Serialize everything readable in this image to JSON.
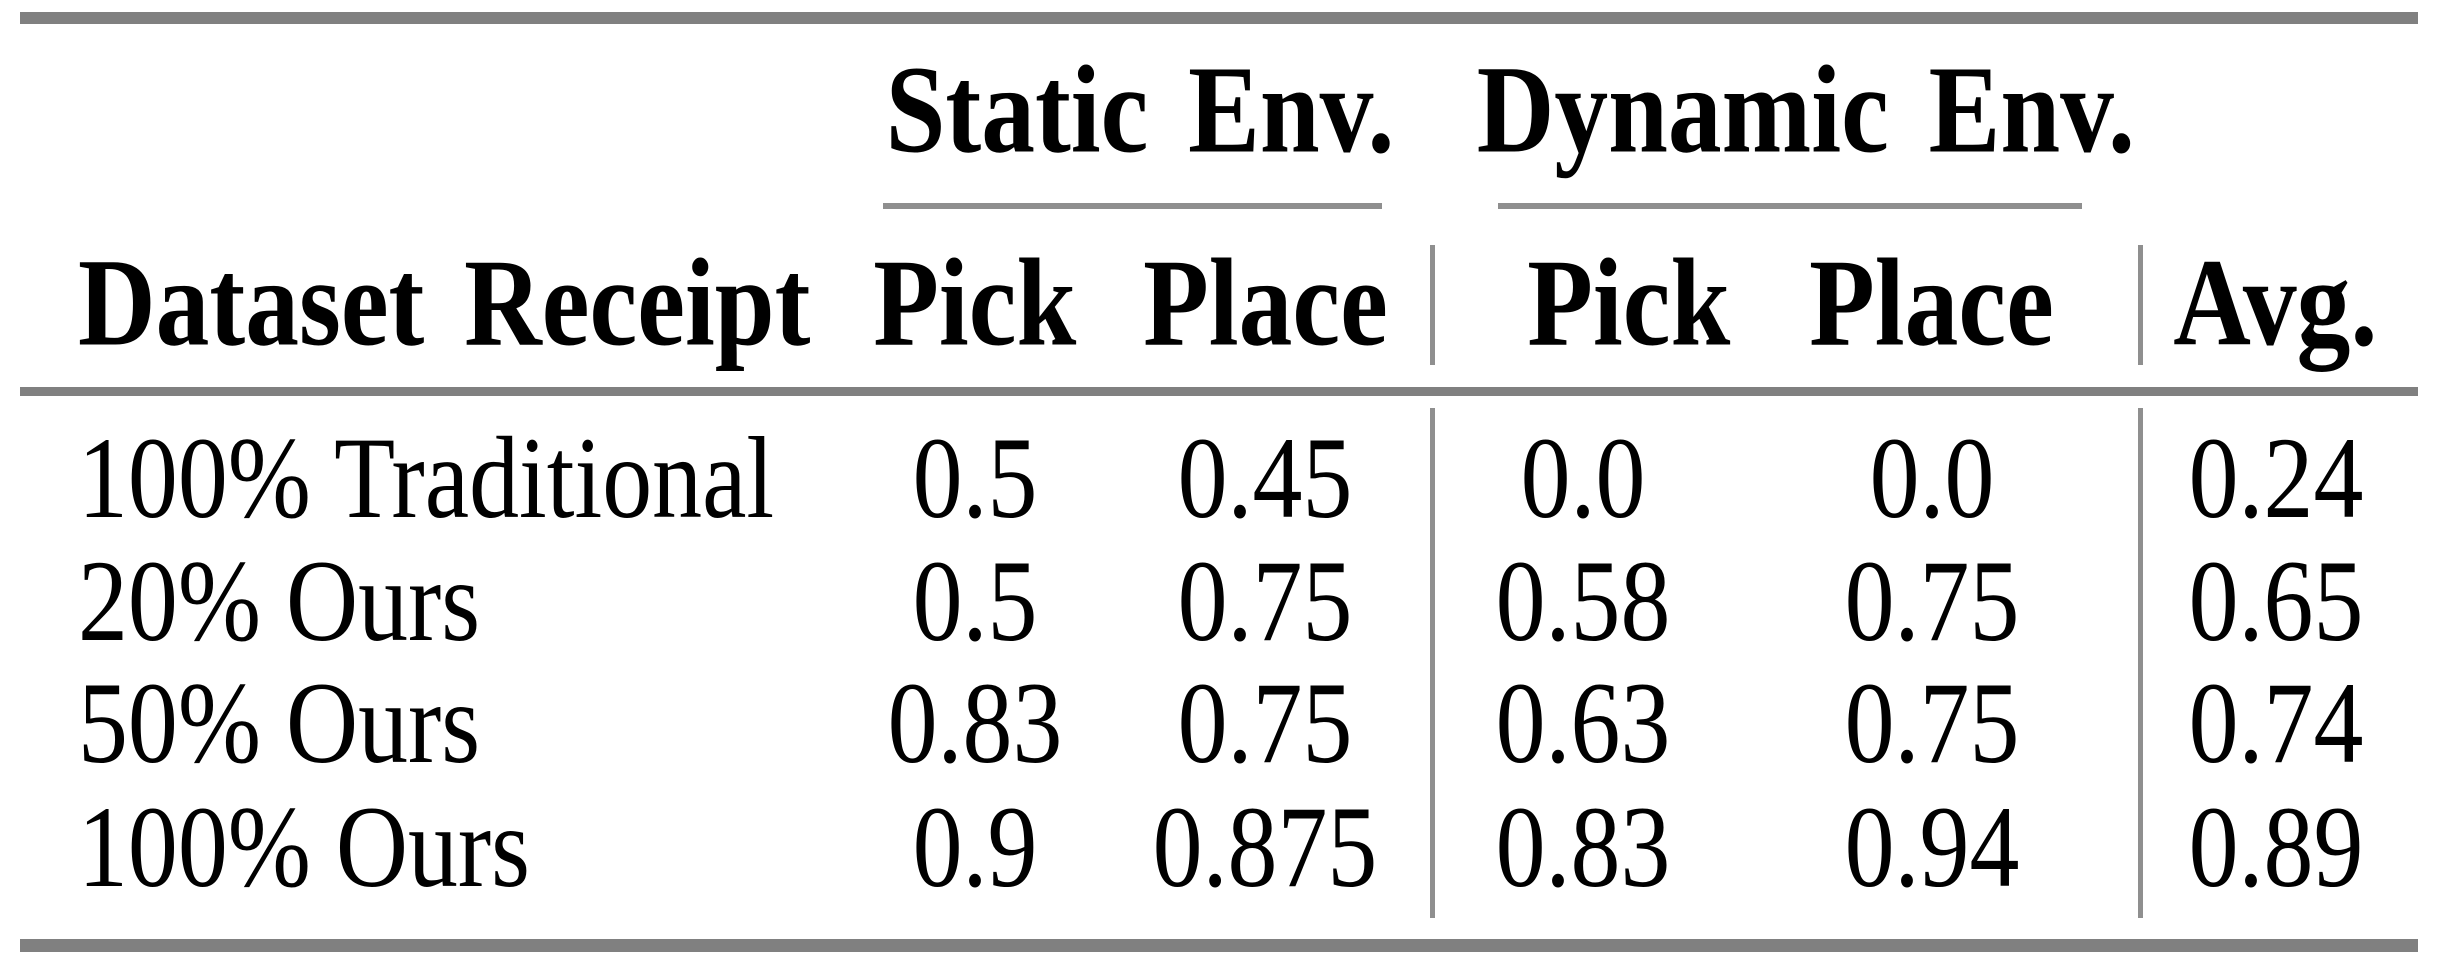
{
  "table": {
    "column_groups": [
      {
        "label": "Static Env."
      },
      {
        "label": "Dynamic Env."
      }
    ],
    "headers": {
      "row_header": "Dataset Receipt",
      "static_pick": "Pick",
      "static_place": "Place",
      "dynamic_pick": "Pick",
      "dynamic_place": "Place",
      "avg": "Avg."
    },
    "rows": [
      {
        "label": "100% Traditional",
        "static_pick": "0.5",
        "static_place": "0.45",
        "dynamic_pick": "0.0",
        "dynamic_place": "0.0",
        "avg": "0.24"
      },
      {
        "label": "20% Ours",
        "static_pick": "0.5",
        "static_place": "0.75",
        "dynamic_pick": "0.58",
        "dynamic_place": "0.75",
        "avg": "0.65"
      },
      {
        "label": "50% Ours",
        "static_pick": "0.83",
        "static_place": "0.75",
        "dynamic_pick": "0.63",
        "dynamic_place": "0.75",
        "avg": "0.74"
      },
      {
        "label": "100% Ours",
        "static_pick": "0.9",
        "static_place": "0.875",
        "dynamic_pick": "0.83",
        "dynamic_place": "0.94",
        "avg": "0.89"
      }
    ],
    "colors": {
      "heavy_rule": "#808080",
      "light_rule": "#8f8f8f",
      "text": "#000000",
      "background": "#ffffff"
    }
  },
  "chart_data": {
    "type": "table",
    "title": "",
    "column_groups": [
      "Static Env.",
      "Dynamic Env."
    ],
    "columns": [
      "Dataset Receipt",
      "Static Env. Pick",
      "Static Env. Place",
      "Dynamic Env. Pick",
      "Dynamic Env. Place",
      "Avg."
    ],
    "rows": [
      [
        "100% Traditional",
        0.5,
        0.45,
        0.0,
        0.0,
        0.24
      ],
      [
        "20% Ours",
        0.5,
        0.75,
        0.58,
        0.75,
        0.65
      ],
      [
        "50% Ours",
        0.83,
        0.75,
        0.63,
        0.75,
        0.74
      ],
      [
        "100% Ours",
        0.9,
        0.875,
        0.83,
        0.94,
        0.89
      ]
    ]
  }
}
